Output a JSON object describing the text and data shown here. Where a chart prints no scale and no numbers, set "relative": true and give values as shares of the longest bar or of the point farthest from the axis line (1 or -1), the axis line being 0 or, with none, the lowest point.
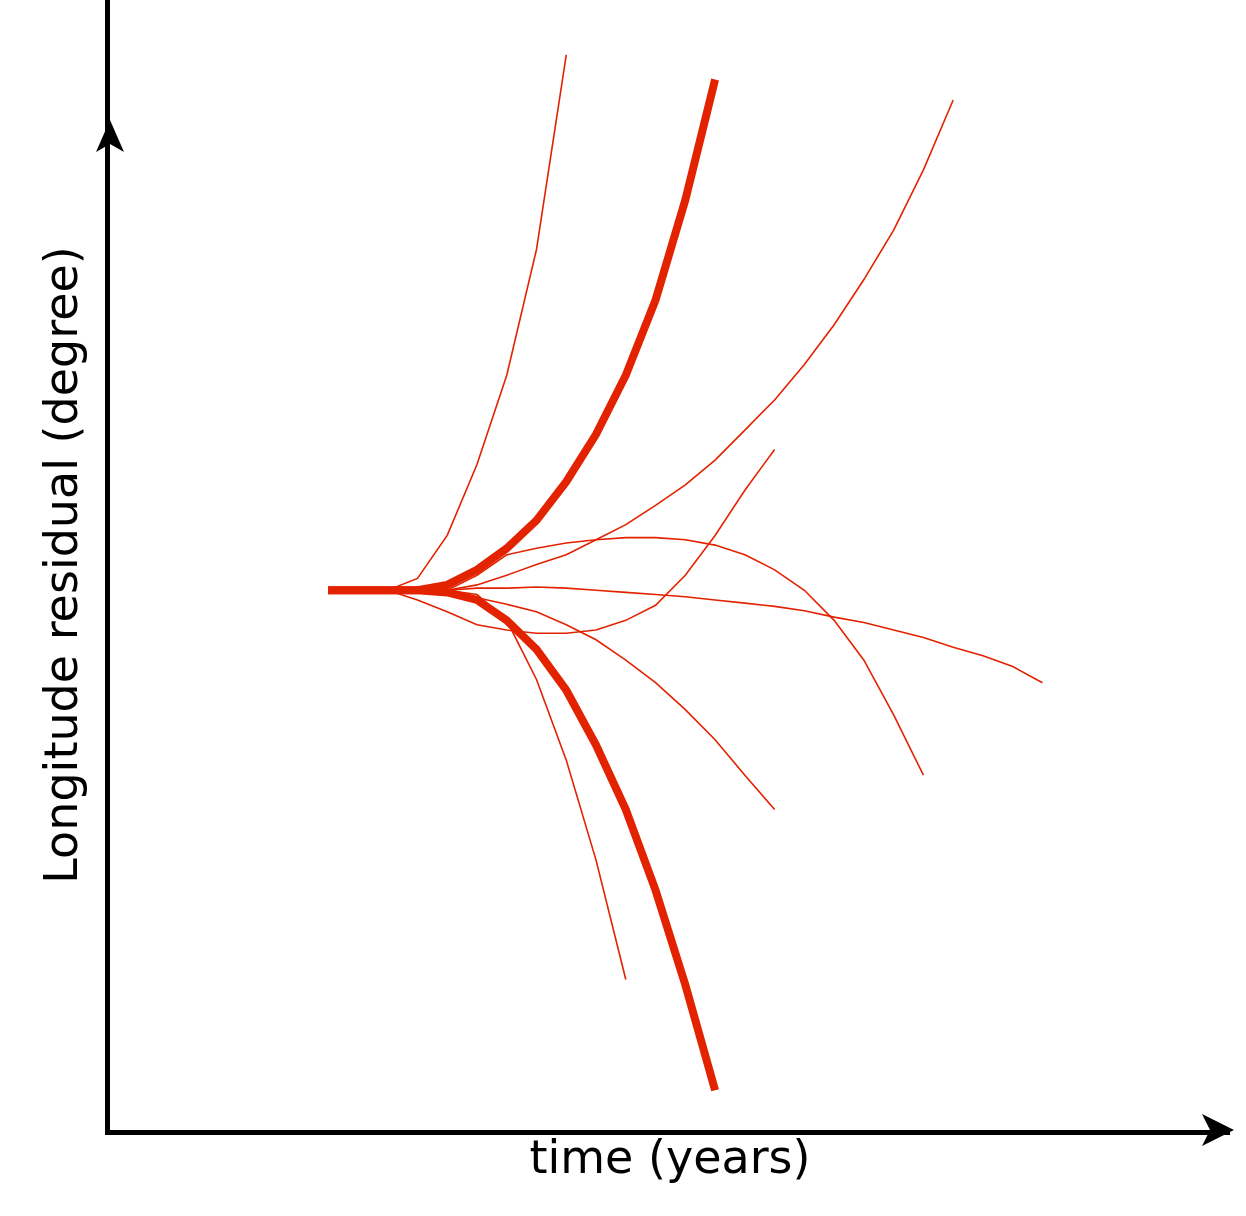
{
  "chart_data": {
    "type": "line",
    "relative": true,
    "xlabel": "time (years)",
    "ylabel": "Longitude residual (degree)",
    "marker": "none",
    "line_style": "solid",
    "tick_labels": false,
    "categories": [
      null,
      null,
      null,
      null,
      null,
      null,
      null,
      null,
      null,
      null,
      null,
      null,
      null,
      null,
      null,
      null,
      null,
      null,
      null,
      null,
      null,
      null,
      null,
      null,
      null
    ],
    "series": [
      {
        "color": "#e32200",
        "values": [
          0.502,
          0.502,
          0.502,
          0.502,
          0.507,
          0.521,
          0.541,
          0.567,
          0.603,
          0.647,
          0.702,
          0.772,
          0.865,
          0.977,
          null,
          null,
          null,
          null,
          null,
          null,
          null,
          null,
          null,
          null,
          null
        ]
      },
      {
        "color": "#e32200",
        "values": [
          0.502,
          0.502,
          0.502,
          0.502,
          0.5,
          0.493,
          0.474,
          0.447,
          0.409,
          0.358,
          0.298,
          0.223,
          0.135,
          0.037,
          null,
          null,
          null,
          null,
          null,
          null,
          null,
          null,
          null,
          null,
          null
        ]
      },
      {
        "color": "#e32200",
        "values": [
          0.502,
          0.502,
          0.502,
          0.513,
          0.553,
          0.619,
          0.702,
          0.819,
          1.0,
          null,
          null,
          null,
          null,
          null,
          null,
          null,
          null,
          null,
          null,
          null,
          null,
          null,
          null,
          null,
          null
        ]
      },
      {
        "color": "#e32200",
        "values": [
          0.502,
          0.502,
          0.502,
          0.502,
          0.502,
          0.507,
          0.516,
          0.526,
          0.535,
          0.549,
          0.563,
          0.581,
          0.6,
          0.623,
          0.651,
          0.679,
          0.712,
          0.749,
          0.791,
          0.837,
          0.893,
          0.958,
          null,
          null,
          null
        ]
      },
      {
        "color": "#e32200",
        "values": [
          0.502,
          0.502,
          0.502,
          0.502,
          0.502,
          0.516,
          0.535,
          0.541,
          0.546,
          0.549,
          0.551,
          0.551,
          0.549,
          0.544,
          0.535,
          0.521,
          0.502,
          0.474,
          0.437,
          0.386,
          0.33,
          null,
          null,
          null,
          null
        ]
      },
      {
        "color": "#e32200",
        "values": [
          0.502,
          0.502,
          0.502,
          0.502,
          0.502,
          0.504,
          0.504,
          0.505,
          0.504,
          0.502,
          0.5,
          0.498,
          0.496,
          0.493,
          0.49,
          0.487,
          0.483,
          0.477,
          0.472,
          0.465,
          0.458,
          0.449,
          0.441,
          0.431,
          0.416
        ]
      },
      {
        "color": "#e32200",
        "values": [
          0.502,
          0.502,
          0.502,
          0.493,
          0.482,
          0.47,
          0.465,
          0.462,
          0.462,
          0.465,
          0.474,
          0.488,
          0.516,
          0.553,
          0.595,
          0.633,
          null,
          null,
          null,
          null,
          null,
          null,
          null,
          null,
          null
        ]
      },
      {
        "color": "#e32200",
        "values": [
          0.502,
          0.502,
          0.502,
          0.502,
          0.502,
          0.495,
          0.489,
          0.482,
          0.47,
          0.456,
          0.437,
          0.416,
          0.391,
          0.363,
          0.33,
          0.298,
          null,
          null,
          null,
          null,
          null,
          null,
          null,
          null,
          null
        ]
      },
      {
        "color": "#e32200",
        "values": [
          0.502,
          0.502,
          0.502,
          0.502,
          0.502,
          0.498,
          0.474,
          0.419,
          0.344,
          0.251,
          0.14,
          null,
          null,
          null,
          null,
          null,
          null,
          null,
          null,
          null,
          null,
          null,
          null,
          null,
          null
        ]
      }
    ]
  }
}
